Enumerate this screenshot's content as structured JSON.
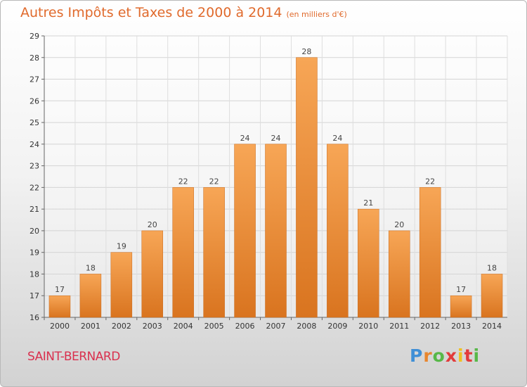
{
  "chart_data": {
    "type": "bar",
    "title": "Autres Impôts et Taxes de 2000 à 2014",
    "subtitle": "(en milliers d'€)",
    "categories": [
      "2000",
      "2001",
      "2002",
      "2003",
      "2004",
      "2005",
      "2006",
      "2007",
      "2008",
      "2009",
      "2010",
      "2011",
      "2012",
      "2013",
      "2014"
    ],
    "values": [
      17,
      18,
      19,
      20,
      22,
      22,
      24,
      24,
      28,
      24,
      21,
      20,
      22,
      17,
      18
    ],
    "ylim": [
      16,
      29
    ],
    "yticks": [
      16,
      17,
      18,
      19,
      20,
      21,
      22,
      23,
      24,
      25,
      26,
      27,
      28,
      29
    ],
    "grid": true,
    "bar_color": "#f29a48"
  },
  "footer": {
    "place": "SAINT-BERNARD",
    "logo": "Proxiti"
  }
}
